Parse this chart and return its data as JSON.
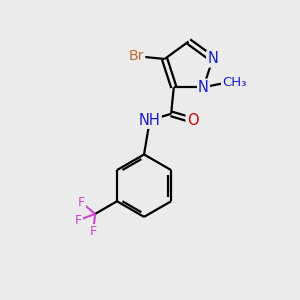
{
  "bg_color": "#ebebeb",
  "bond_color": "#000000",
  "bond_width": 1.6,
  "atom_colors": {
    "N": "#1a1acc",
    "O": "#cc0000",
    "Br": "#b87030",
    "F": "#cc44cc",
    "C": "#000000"
  },
  "font_size": 9.5,
  "fig_size": [
    3.0,
    3.0
  ],
  "dpi": 100
}
